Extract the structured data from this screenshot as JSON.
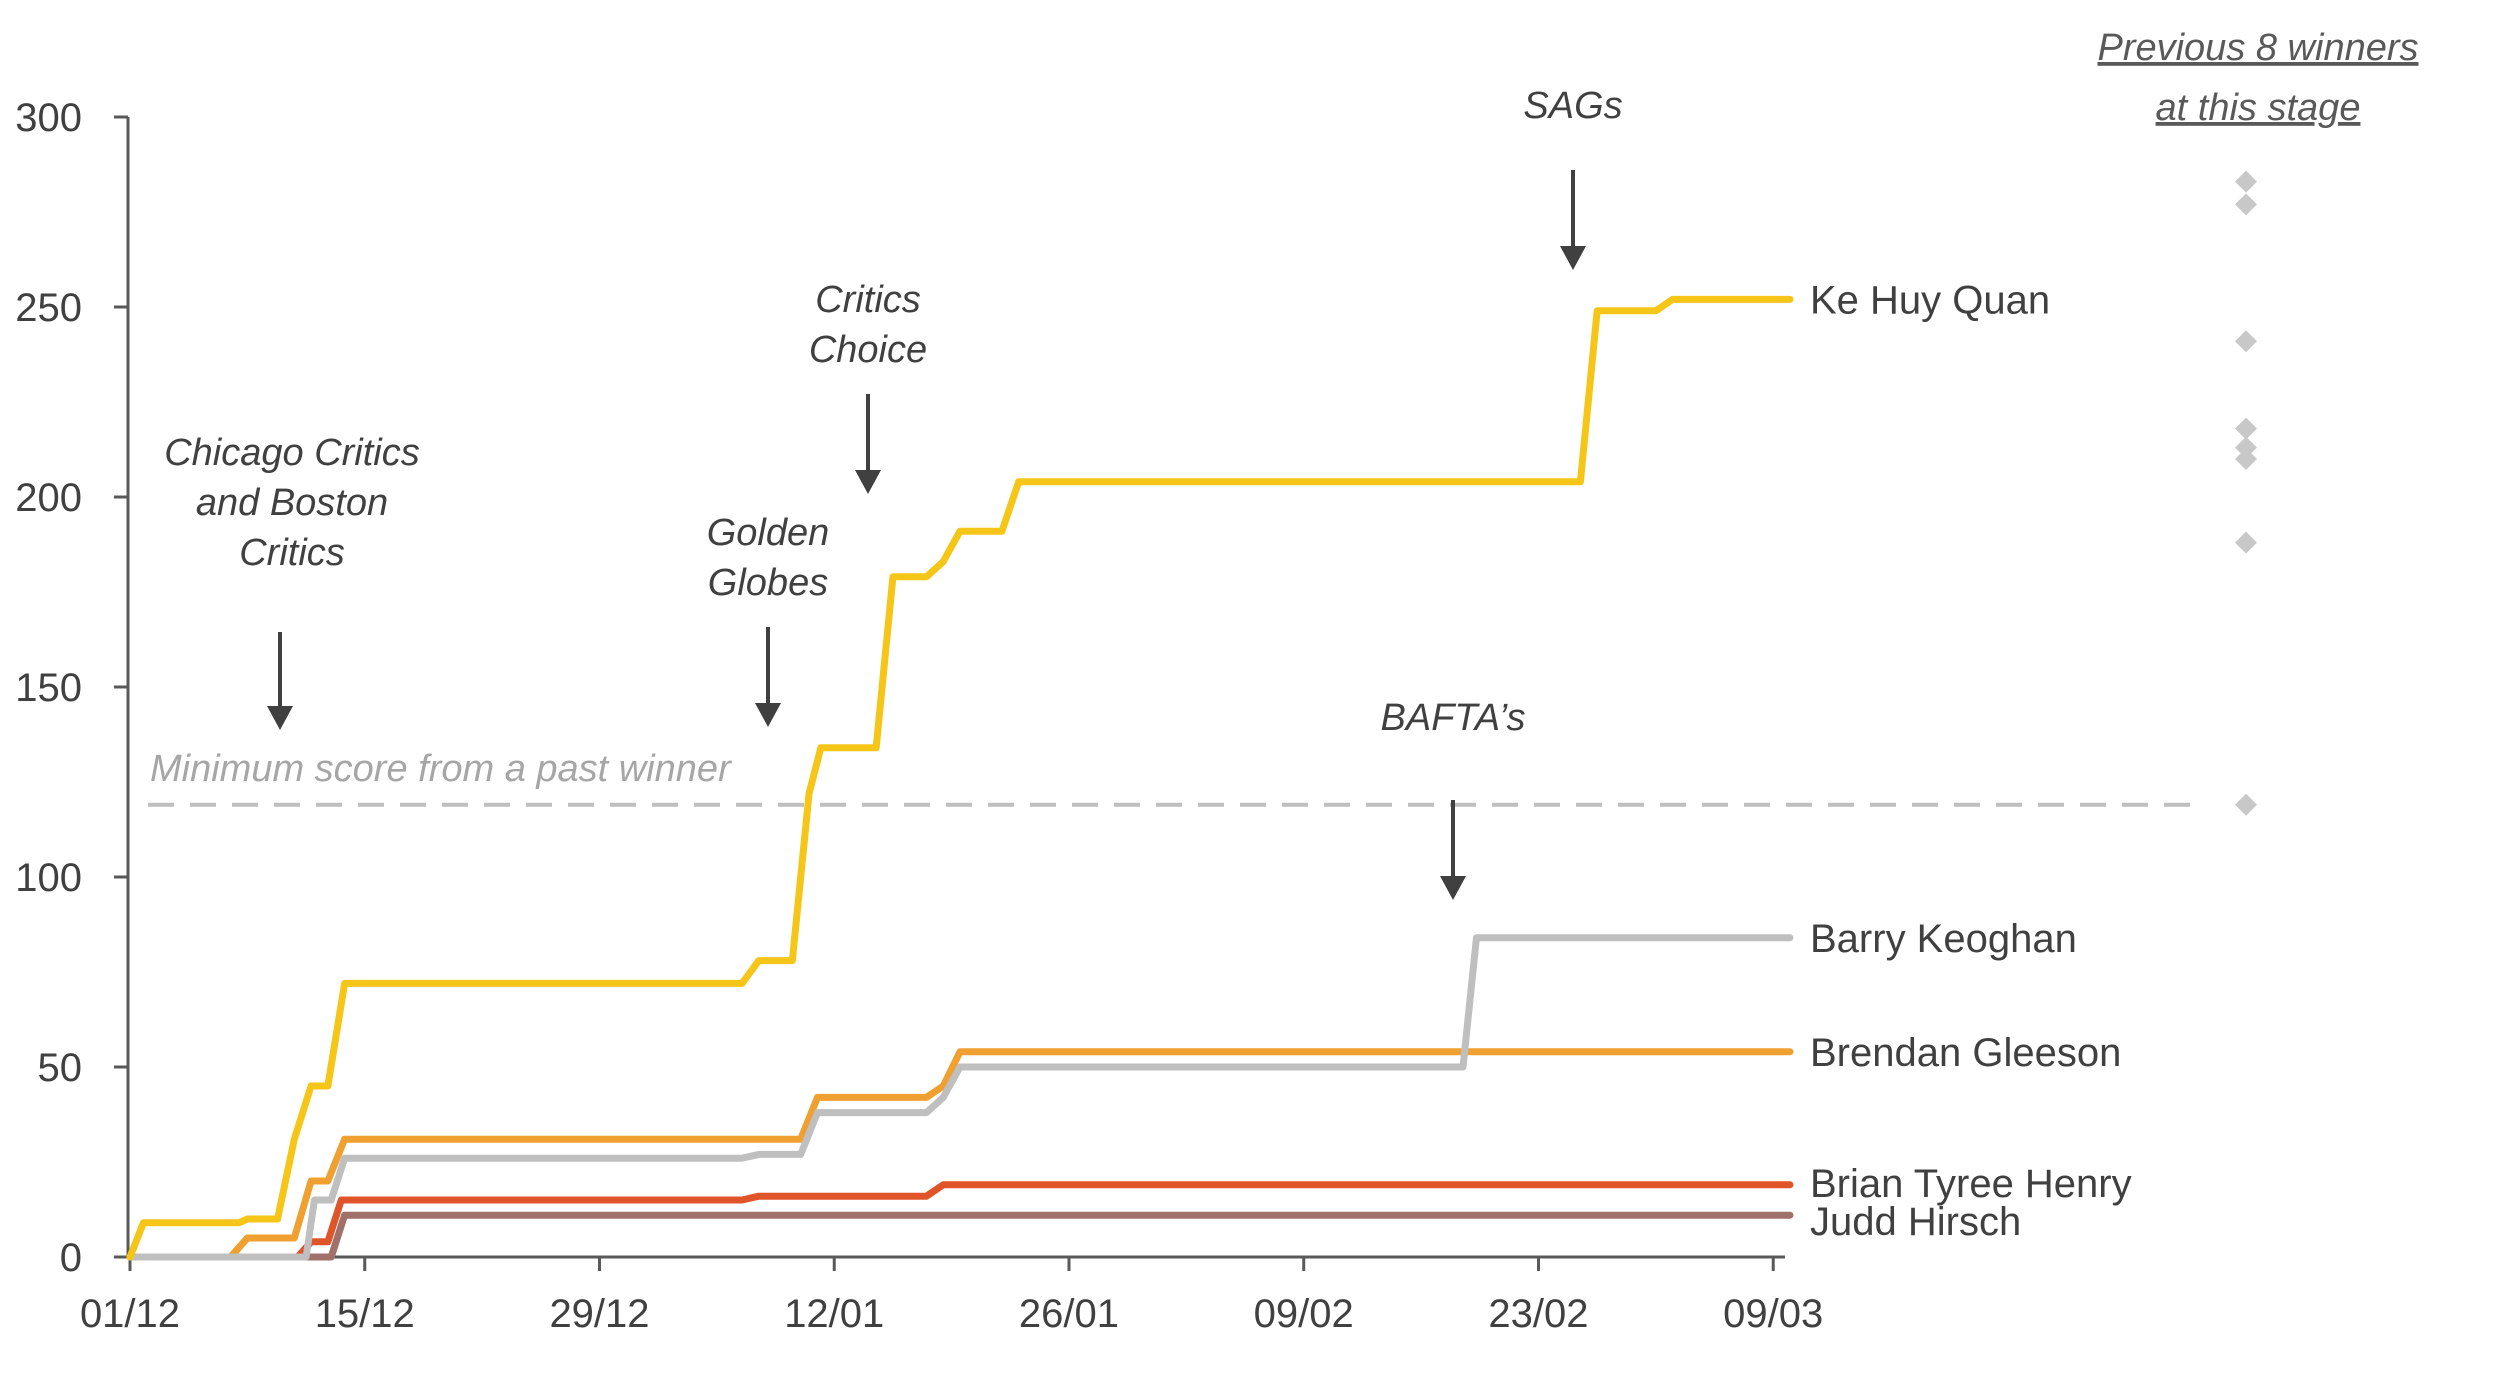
{
  "chart_data": {
    "type": "line",
    "title": "",
    "xlabel": "",
    "ylabel": "",
    "ylim": [
      0,
      300
    ],
    "yticks": [
      0,
      50,
      100,
      150,
      200,
      250,
      300
    ],
    "xlim": [
      0,
      99
    ],
    "xticks": [
      {
        "day": 0,
        "label": "01/12"
      },
      {
        "day": 14,
        "label": "15/12"
      },
      {
        "day": 28,
        "label": "29/12"
      },
      {
        "day": 42,
        "label": "12/01"
      },
      {
        "day": 56,
        "label": "26/01"
      },
      {
        "day": 70,
        "label": "09/02"
      },
      {
        "day": 84,
        "label": "23/02"
      },
      {
        "day": 98,
        "label": "09/03"
      }
    ],
    "series": [
      {
        "name": "Ke Huy Quan",
        "color": "#f5c518",
        "points": [
          [
            0,
            0
          ],
          [
            0.8,
            9
          ],
          [
            6.5,
            9
          ],
          [
            7,
            10
          ],
          [
            8.8,
            10
          ],
          [
            9.8,
            31
          ],
          [
            10.8,
            45
          ],
          [
            11.8,
            45
          ],
          [
            12.8,
            72
          ],
          [
            36.5,
            72
          ],
          [
            37.5,
            78
          ],
          [
            39.5,
            78
          ],
          [
            40.5,
            122
          ],
          [
            41.2,
            134
          ],
          [
            44.5,
            134
          ],
          [
            45.5,
            179
          ],
          [
            47.5,
            179
          ],
          [
            48.5,
            183
          ],
          [
            49.5,
            191
          ],
          [
            52,
            191
          ],
          [
            53,
            204
          ],
          [
            86.5,
            204
          ],
          [
            87.5,
            249
          ],
          [
            91,
            249
          ],
          [
            92,
            252
          ],
          [
            99,
            252
          ]
        ]
      },
      {
        "name": "Barry Keoghan",
        "color": "#bfbfbf",
        "points": [
          [
            0,
            0
          ],
          [
            10.5,
            0
          ],
          [
            11,
            15
          ],
          [
            12,
            15
          ],
          [
            12.8,
            26
          ],
          [
            36.5,
            26
          ],
          [
            37.5,
            27
          ],
          [
            40,
            27
          ],
          [
            41,
            38
          ],
          [
            47.5,
            38
          ],
          [
            48.5,
            42
          ],
          [
            49.5,
            50
          ],
          [
            79.5,
            50
          ],
          [
            80.3,
            84
          ],
          [
            99,
            84
          ]
        ]
      },
      {
        "name": "Brendan Gleeson",
        "color": "#f0a030",
        "points": [
          [
            0,
            0
          ],
          [
            6,
            0
          ],
          [
            7,
            5
          ],
          [
            9.8,
            5
          ],
          [
            10.8,
            20
          ],
          [
            11.8,
            20
          ],
          [
            12.8,
            31
          ],
          [
            40,
            31
          ],
          [
            41,
            42
          ],
          [
            47.5,
            42
          ],
          [
            48.5,
            45
          ],
          [
            49.5,
            54
          ],
          [
            99,
            54
          ]
        ]
      },
      {
        "name": "Brian Tyree Henry",
        "color": "#e0542a",
        "points": [
          [
            0,
            0
          ],
          [
            10,
            0
          ],
          [
            10.8,
            4
          ],
          [
            11.8,
            4
          ],
          [
            12.6,
            15
          ],
          [
            36.5,
            15
          ],
          [
            37.5,
            16
          ],
          [
            47.5,
            16
          ],
          [
            48.5,
            19
          ],
          [
            99,
            19
          ]
        ]
      },
      {
        "name": "Judd Hirsch",
        "color": "#a0706a",
        "points": [
          [
            0,
            0
          ],
          [
            12,
            0
          ],
          [
            12.8,
            11
          ],
          [
            99,
            11
          ]
        ]
      }
    ],
    "threshold": {
      "value": 119,
      "label": "Minimum score from a past winner",
      "color": "#bfbfbf"
    },
    "previous_winners": {
      "title_line1": "Previous 8 winners",
      "title_line2": "at this stage",
      "color": "#c8c8c8",
      "values": [
        283,
        277,
        241,
        218,
        213,
        210,
        188,
        119
      ]
    },
    "annotations": [
      {
        "name": "chicago-boston",
        "lines": [
          "Chicago Critics",
          "and  Boston",
          "Critics"
        ],
        "day": 9
      },
      {
        "name": "golden-globes",
        "lines": [
          "Golden",
          "Globes"
        ],
        "day": 38.5
      },
      {
        "name": "critics-choice",
        "lines": [
          "Critics",
          "Choice"
        ],
        "day": 44.5
      },
      {
        "name": "baftas",
        "lines": [
          "BAFTA’s"
        ],
        "day": 80
      },
      {
        "name": "sags",
        "lines": [
          "SAGs"
        ],
        "day": 87
      }
    ]
  }
}
